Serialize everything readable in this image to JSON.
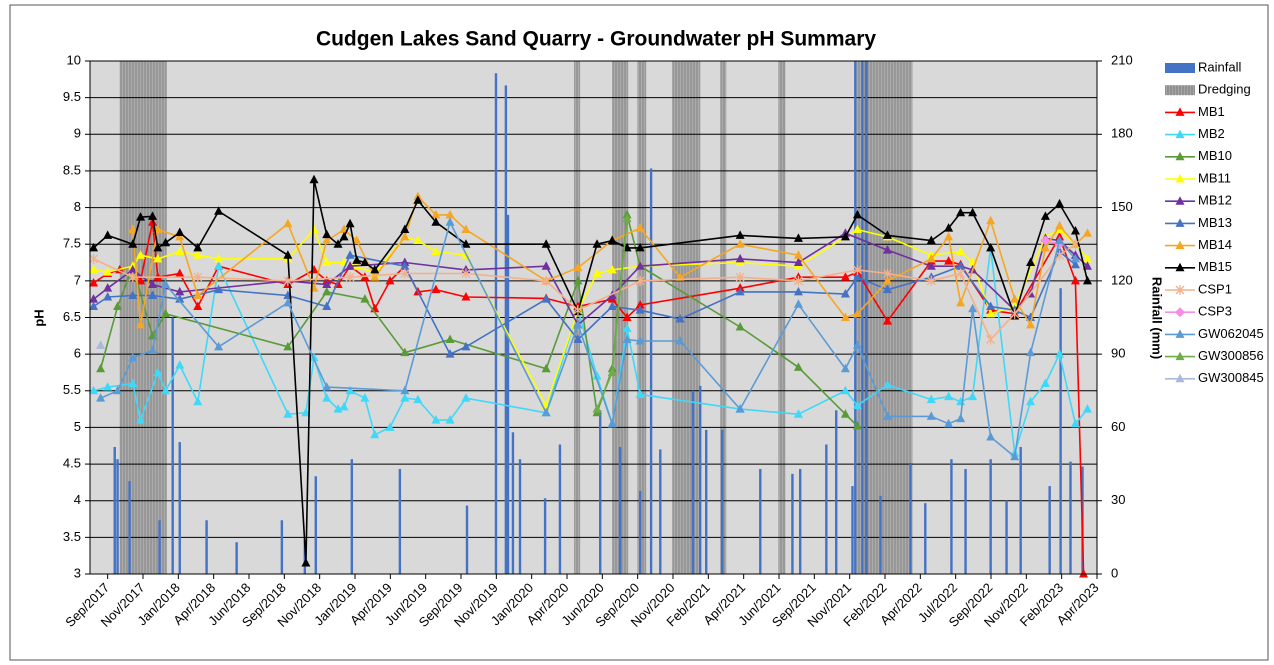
{
  "chart_data": {
    "type": "line",
    "title": "Cudgen Lakes Sand Quarry - Groundwater pH Summary",
    "y_label": "pH",
    "y2_label": "Rainfall (mm)",
    "xlim": [
      -0.5,
      28
    ],
    "ylim": [
      3,
      10
    ],
    "y2lim": [
      0,
      210
    ],
    "yticks": [
      3,
      3.5,
      4,
      4.5,
      5,
      5.5,
      6,
      6.5,
      7,
      7.5,
      8,
      8.5,
      9,
      9.5,
      10
    ],
    "y2ticks": [
      0,
      30,
      60,
      90,
      120,
      150,
      180,
      210
    ],
    "grid": true,
    "legend": "right",
    "xticks": [
      {
        "value": 0,
        "label": "Sep/2017"
      },
      {
        "value": 1,
        "label": "Nov/2017"
      },
      {
        "value": 2,
        "label": "Jan/2018"
      },
      {
        "value": 3,
        "label": "Apr/2018"
      },
      {
        "value": 4,
        "label": "Jun/2018"
      },
      {
        "value": 5,
        "label": "Sep/2018"
      },
      {
        "value": 6,
        "label": "Nov/2018"
      },
      {
        "value": 7,
        "label": "Jan/2019"
      },
      {
        "value": 8,
        "label": "Apr/2019"
      },
      {
        "value": 9,
        "label": "Jun/2019"
      },
      {
        "value": 10,
        "label": "Sep/2019"
      },
      {
        "value": 11,
        "label": "Nov/2019"
      },
      {
        "value": 12,
        "label": "Jan/2020"
      },
      {
        "value": 13,
        "label": "Apr/2020"
      },
      {
        "value": 14,
        "label": "Jun/2020"
      },
      {
        "value": 15,
        "label": "Sep/2020"
      },
      {
        "value": 16,
        "label": "Nov/2020"
      },
      {
        "value": 17,
        "label": "Feb/2021"
      },
      {
        "value": 18,
        "label": "Apr/2021"
      },
      {
        "value": 19,
        "label": "Jun/2021"
      },
      {
        "value": 20,
        "label": "Sep/2021"
      },
      {
        "value": 21,
        "label": "Nov/2021"
      },
      {
        "value": 22,
        "label": "Feb/2022"
      },
      {
        "value": 23,
        "label": "Apr/2022"
      },
      {
        "value": 24,
        "label": "Jul/2022"
      },
      {
        "value": 25,
        "label": "Sep/2022"
      },
      {
        "value": 26,
        "label": "Nov/2022"
      },
      {
        "value": 27,
        "label": "Feb/2023"
      },
      {
        "value": 28,
        "label": "Apr/2023"
      }
    ],
    "rainfall": {
      "name": "Rainfall",
      "type": "bar",
      "axis": "y2",
      "color": "#4472c4",
      "x": [
        0.2,
        0.28,
        0.62,
        1.47,
        1.84,
        2.04,
        2.8,
        3.65,
        4.93,
        5.58,
        5.89,
        6.91,
        8.27,
        10.17,
        10.99,
        11.27,
        11.33,
        11.47,
        11.67,
        12.38,
        12.8,
        13.94,
        14.5,
        15.07,
        15.38,
        15.64,
        16.57,
        16.77,
        16.94,
        17.39,
        18.47,
        19.38,
        19.6,
        20.34,
        20.62,
        21.08,
        21.16,
        21.36,
        21.47,
        21.87,
        22.72,
        23.14,
        23.88,
        24.28,
        24.99,
        25.44,
        25.84,
        26.66,
        26.97,
        27.25,
        27.59
      ],
      "values": [
        52,
        47,
        38,
        22,
        105,
        54,
        22,
        13,
        22,
        14,
        40,
        47,
        43,
        28,
        205,
        200,
        147,
        58,
        47,
        31,
        53,
        67,
        52,
        34,
        166,
        51,
        75,
        77,
        59,
        59,
        43,
        41,
        43,
        53,
        67,
        36,
        210,
        210,
        210,
        32,
        45,
        29,
        47,
        43,
        47,
        30,
        52,
        36,
        117,
        46,
        44
      ]
    },
    "dredging": {
      "name": "Dredging",
      "color": "#808080",
      "ranges": [
        [
          0.34,
          1.67
        ],
        [
          13.2,
          13.37
        ],
        [
          14.28,
          14.73
        ],
        [
          14.99,
          15.24
        ],
        [
          15.98,
          16.77
        ],
        [
          17.34,
          17.51
        ],
        [
          18.98,
          19.18
        ],
        [
          21.16,
          22.78
        ]
      ]
    },
    "series": [
      {
        "name": "MB1",
        "color": "#ff0000",
        "marker": "triangle",
        "x": [
          -0.4,
          0,
          0.34,
          0.71,
          0.93,
          1.27,
          1.42,
          2.04,
          2.55,
          3.14,
          5.1,
          5.84,
          6.2,
          6.52,
          6.86,
          7.28,
          7.56,
          7.99,
          8.41,
          8.78,
          9.29,
          10.14,
          12.41,
          13.31,
          14.28,
          14.7,
          15.07,
          17.9,
          19.55,
          20.88,
          21.22,
          22.07,
          23.31,
          23.8,
          24.14,
          24.99,
          25.67,
          26.94,
          27.39,
          27.62
        ],
        "values": [
          6.97,
          7.1,
          7.15,
          7.2,
          7.0,
          7.8,
          7.05,
          7.1,
          6.65,
          7.2,
          6.95,
          7.15,
          7.0,
          6.95,
          7.2,
          7.05,
          6.62,
          7.0,
          7.2,
          6.85,
          6.88,
          6.78,
          6.76,
          6.65,
          6.75,
          6.5,
          6.67,
          6.9,
          7.05,
          7.05,
          7.12,
          6.45,
          7.27,
          7.27,
          7.22,
          6.6,
          6.55,
          7.6,
          7.0,
          3.0
        ]
      },
      {
        "name": "MB2",
        "color": "#3fd8f8",
        "marker": "triangle",
        "x": [
          -0.4,
          0,
          0.71,
          0.93,
          1.42,
          1.64,
          2.04,
          2.55,
          3.14,
          5.1,
          5.61,
          5.84,
          6.2,
          6.52,
          6.69,
          6.86,
          7.28,
          7.56,
          7.99,
          8.41,
          8.78,
          9.29,
          9.69,
          10.14,
          12.41,
          13.31,
          13.85,
          14.28,
          14.7,
          15.07,
          17.9,
          19.55,
          20.88,
          21.22,
          22.07,
          23.31,
          23.8,
          24.14,
          24.48,
          24.99,
          25.67,
          26.12,
          26.54,
          26.94,
          27.39,
          27.73
        ],
        "values": [
          5.5,
          5.55,
          5.6,
          5.1,
          5.75,
          5.5,
          5.85,
          5.35,
          7.2,
          5.18,
          5.2,
          5.95,
          5.4,
          5.25,
          5.28,
          5.5,
          5.4,
          4.9,
          5.0,
          5.4,
          5.38,
          5.1,
          5.1,
          5.4,
          5.2,
          6.6,
          5.7,
          5.05,
          6.35,
          5.45,
          5.25,
          5.18,
          5.5,
          5.3,
          5.58,
          5.38,
          5.42,
          5.35,
          5.42,
          7.45,
          4.65,
          5.35,
          5.6,
          6.0,
          5.05,
          5.25
        ]
      },
      {
        "name": "MB10",
        "color": "#5a9a38",
        "marker": "triangle",
        "x": [
          -0.2,
          0.28,
          0.71,
          1.27,
          1.64,
          5.1,
          6.2,
          7.28,
          8.41,
          9.69,
          12.41,
          13.31,
          13.85,
          14.28,
          14.7,
          15.07,
          17.9,
          19.55,
          20.88,
          21.22
        ],
        "values": [
          5.8,
          6.65,
          7.2,
          6.25,
          6.55,
          6.1,
          6.85,
          6.75,
          6.02,
          6.2,
          5.8,
          7.0,
          5.2,
          5.8,
          7.9,
          7.2,
          6.37,
          5.82,
          5.18,
          5.02
        ]
      },
      {
        "name": "MB11",
        "color": "#ffff00",
        "marker": "triangle",
        "x": [
          -0.4,
          0,
          0.71,
          0.93,
          1.42,
          2.04,
          2.55,
          3.14,
          5.1,
          5.84,
          6.2,
          6.69,
          7.05,
          7.56,
          8.41,
          8.78,
          9.29,
          10.14,
          12.41,
          13.31,
          13.85,
          14.28,
          15.07,
          17.9,
          19.55,
          21.22,
          22.07,
          23.31,
          24.14,
          24.48,
          24.99,
          25.67,
          26.54,
          26.94,
          27.39,
          27.73
        ],
        "values": [
          7.15,
          7.12,
          7.2,
          7.35,
          7.3,
          7.4,
          7.35,
          7.3,
          7.3,
          7.7,
          7.25,
          7.25,
          7.2,
          7.1,
          7.6,
          7.55,
          7.4,
          7.35,
          5.3,
          6.6,
          7.1,
          7.15,
          7.2,
          7.25,
          7.2,
          7.7,
          7.6,
          7.35,
          7.4,
          7.25,
          6.55,
          6.65,
          7.6,
          7.7,
          7.5,
          7.3
        ]
      },
      {
        "name": "MB12",
        "color": "#7030a0",
        "marker": "triangle",
        "x": [
          -0.4,
          0,
          0.71,
          1.27,
          2.04,
          5.1,
          6.2,
          6.86,
          8.41,
          10.14,
          12.41,
          13.31,
          14.28,
          15.07,
          17.9,
          19.55,
          20.88,
          22.07,
          23.31,
          24.14,
          24.48,
          25.67,
          26.12,
          26.54,
          26.94,
          27.39,
          27.73
        ],
        "values": [
          6.75,
          6.9,
          7.15,
          6.95,
          6.85,
          7.0,
          6.95,
          7.2,
          7.25,
          7.15,
          7.2,
          6.4,
          6.8,
          7.2,
          7.3,
          7.25,
          7.65,
          7.42,
          7.2,
          7.2,
          7.15,
          6.6,
          6.82,
          7.58,
          7.55,
          7.35,
          7.2
        ]
      },
      {
        "name": "MB13",
        "color": "#4472c4",
        "marker": "triangle",
        "x": [
          -0.4,
          0,
          0.71,
          1.27,
          2.04,
          3.14,
          5.1,
          6.2,
          6.86,
          8.41,
          9.69,
          10.14,
          12.41,
          13.31,
          14.28,
          15.07,
          16.2,
          17.9,
          19.55,
          20.88,
          21.22,
          22.07,
          23.31,
          24.14,
          24.99,
          25.67,
          26.12,
          26.94,
          27.39
        ],
        "values": [
          6.65,
          6.78,
          6.8,
          6.8,
          6.75,
          6.88,
          6.8,
          6.65,
          7.35,
          7.2,
          6.0,
          6.1,
          6.75,
          6.2,
          6.65,
          6.6,
          6.48,
          6.85,
          6.85,
          6.82,
          7.05,
          6.88,
          7.05,
          7.2,
          6.65,
          6.6,
          6.5,
          7.4,
          7.22
        ]
      },
      {
        "name": "MB14",
        "color": "#f5a623",
        "marker": "triangle",
        "x": [
          0.71,
          0.93,
          1.42,
          2.04,
          2.55,
          5.1,
          5.84,
          6.2,
          6.69,
          7.05,
          7.56,
          8.41,
          8.78,
          9.29,
          9.69,
          10.14,
          12.41,
          13.31,
          14.28,
          15.07,
          16.2,
          17.9,
          19.55,
          20.88,
          21.22,
          22.07,
          23.31,
          23.8,
          24.14,
          24.99,
          25.67,
          26.12,
          26.54,
          26.94,
          27.39,
          27.73
        ],
        "values": [
          7.7,
          6.4,
          7.7,
          7.6,
          6.8,
          7.78,
          6.9,
          7.55,
          7.7,
          7.55,
          7.05,
          7.6,
          8.15,
          7.9,
          7.9,
          7.7,
          7.0,
          7.18,
          7.55,
          7.72,
          7.05,
          7.5,
          7.35,
          6.5,
          6.55,
          7.0,
          7.3,
          7.6,
          6.7,
          7.82,
          6.75,
          6.4,
          7.45,
          7.75,
          7.5,
          7.65
        ]
      },
      {
        "name": "MB15",
        "color": "#000000",
        "marker": "triangle",
        "x": [
          -0.4,
          0,
          0.71,
          0.93,
          1.27,
          1.42,
          1.64,
          2.04,
          2.55,
          3.14,
          5.1,
          5.61,
          5.84,
          6.2,
          6.52,
          6.69,
          6.86,
          7.05,
          7.28,
          7.56,
          8.41,
          8.78,
          9.29,
          10.14,
          12.41,
          13.31,
          13.85,
          14.28,
          14.7,
          15.07,
          17.9,
          19.55,
          20.88,
          21.22,
          22.07,
          23.31,
          23.8,
          24.14,
          24.48,
          24.99,
          25.67,
          26.12,
          26.54,
          26.94,
          27.39,
          27.73
        ],
        "values": [
          7.45,
          7.62,
          7.5,
          7.87,
          7.88,
          7.45,
          7.52,
          7.66,
          7.45,
          7.95,
          7.35,
          3.15,
          8.38,
          7.63,
          7.5,
          7.6,
          7.78,
          7.28,
          7.25,
          7.15,
          7.7,
          8.1,
          7.8,
          7.5,
          7.5,
          6.58,
          7.5,
          7.55,
          7.45,
          7.45,
          7.62,
          7.58,
          7.6,
          7.9,
          7.62,
          7.55,
          7.72,
          7.93,
          7.93,
          7.45,
          6.52,
          7.25,
          7.88,
          8.05,
          7.68,
          7.0
        ]
      },
      {
        "name": "CSP1",
        "color": "#f4b08a",
        "marker": "cross",
        "x": [
          -0.4,
          0.71,
          2.55,
          5.1,
          6.86,
          8.41,
          10.14,
          12.41,
          13.31,
          15.07,
          17.9,
          19.55,
          21.22,
          22.07,
          23.31,
          24.14,
          24.99,
          25.67,
          26.94,
          27.39
        ],
        "values": [
          7.3,
          7.05,
          7.05,
          7.0,
          7.05,
          7.1,
          7.1,
          7.0,
          6.6,
          7.0,
          7.05,
          7.0,
          7.15,
          7.1,
          7.0,
          7.1,
          6.2,
          6.55,
          7.35,
          7.5
        ]
      },
      {
        "name": "CSP3",
        "color": "#f48ee6",
        "marker": "diamond",
        "x": [
          26.54,
          26.94
        ],
        "values": [
          7.55,
          7.5
        ]
      },
      {
        "name": "GW062045",
        "color": "#5b9bd5",
        "marker": "triangle",
        "x": [
          -0.2,
          0.28,
          0.71,
          1.27,
          1.64,
          3.14,
          5.1,
          6.2,
          8.41,
          9.69,
          12.41,
          13.31,
          14.28,
          14.7,
          15.07,
          16.2,
          17.9,
          19.55,
          20.88,
          21.22,
          22.07,
          23.31,
          23.8,
          24.14,
          24.48,
          24.99,
          25.67,
          26.12,
          26.94,
          27.39
        ],
        "values": [
          5.4,
          5.5,
          5.95,
          6.05,
          6.95,
          6.1,
          6.7,
          5.55,
          5.5,
          7.8,
          5.2,
          6.4,
          5.05,
          6.2,
          6.18,
          6.18,
          5.25,
          6.68,
          5.8,
          6.12,
          5.15,
          5.15,
          5.05,
          5.12,
          6.62,
          4.87,
          4.6,
          6.02,
          7.55,
          7.3
        ]
      },
      {
        "name": "GW300856",
        "color": "#70ad47",
        "marker": "triangle",
        "x": [
          13.85,
          14.28,
          14.7
        ],
        "values": [
          5.25,
          5.75,
          7.85
        ]
      },
      {
        "name": "GW300845",
        "color": "#a9b8dc",
        "marker": "triangle",
        "x": [
          -0.2
        ],
        "values": [
          6.12
        ]
      }
    ]
  }
}
